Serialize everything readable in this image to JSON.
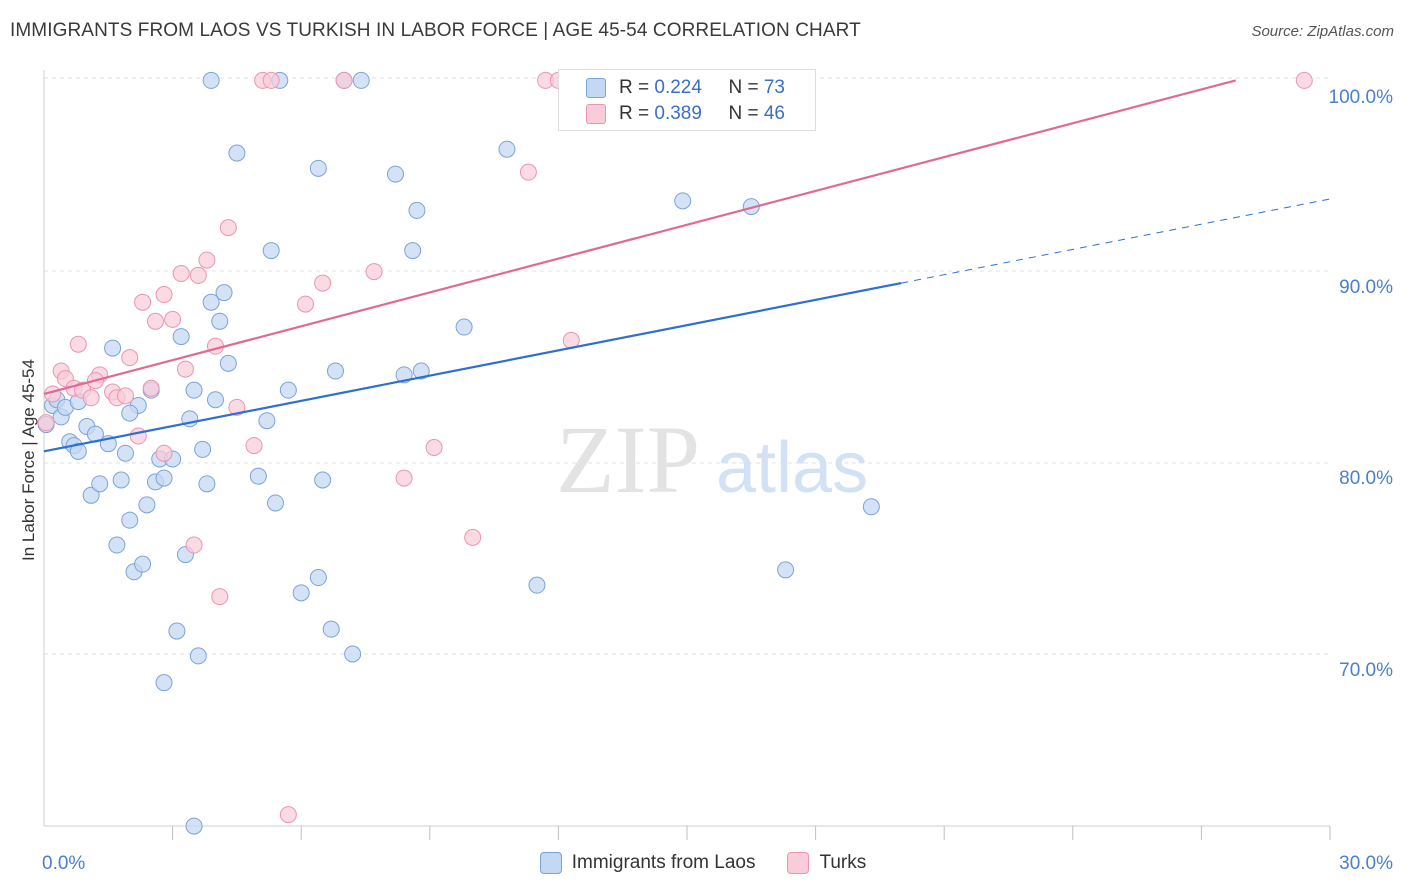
{
  "title": "IMMIGRANTS FROM LAOS VS TURKISH IN LABOR FORCE | AGE 45-54 CORRELATION CHART",
  "source": "Source: ZipAtlas.com",
  "watermark": {
    "zip": "ZIP",
    "atlas": "atlas"
  },
  "legend_top": {
    "rows": [
      {
        "r_label": "R = ",
        "r_value": "0.224",
        "n_label": "N = ",
        "n_value": "73"
      },
      {
        "r_label": "R = ",
        "r_value": "0.389",
        "n_label": "N = ",
        "n_value": "46"
      }
    ]
  },
  "chart_data": {
    "type": "scatter",
    "title": "IMMIGRANTS FROM LAOS VS TURKISH IN LABOR FORCE | AGE 45-54 CORRELATION CHART",
    "xlabel": "",
    "ylabel": "In Labor Force | Age 45-54",
    "xlim": [
      0,
      30
    ],
    "ylim": [
      60.5,
      101.5
    ],
    "x_tick_labels": [
      "0.0%",
      "30.0%"
    ],
    "y_ticks": [
      70,
      80,
      90,
      100
    ],
    "y_tick_labels": [
      "70.0%",
      "80.0%",
      "90.0%",
      "100.0%"
    ],
    "grid": true,
    "legend_position": "bottom",
    "colors": {
      "laos_fill": "#c5d8f3",
      "laos_stroke": "#7aa3da",
      "laos_line": "#2f6fd0",
      "turks_fill": "#f8ccd9",
      "turks_stroke": "#ec94b1",
      "turks_line": "#e06a94",
      "tick_label": "#4a7fd0"
    },
    "series": [
      {
        "name": "Immigrants from Laos",
        "r": 0.224,
        "n": 73,
        "trend": {
          "x0": 0,
          "y0": 80.6,
          "x1": 20,
          "y1": 89.4,
          "dash_to_x": 30,
          "dash_to_y": 93.8
        },
        "points": [
          [
            0.05,
            82.0
          ],
          [
            0.2,
            83.0
          ],
          [
            0.3,
            83.3
          ],
          [
            0.4,
            82.4
          ],
          [
            0.5,
            82.9
          ],
          [
            0.6,
            81.1
          ],
          [
            0.7,
            80.9
          ],
          [
            0.8,
            80.6
          ],
          [
            1.0,
            81.9
          ],
          [
            1.1,
            78.3
          ],
          [
            1.2,
            81.5
          ],
          [
            1.3,
            78.9
          ],
          [
            1.5,
            81.0
          ],
          [
            1.6,
            86.0
          ],
          [
            1.7,
            75.7
          ],
          [
            1.8,
            79.1
          ],
          [
            1.9,
            80.5
          ],
          [
            2.0,
            77.0
          ],
          [
            2.1,
            74.3
          ],
          [
            2.2,
            83.0
          ],
          [
            2.3,
            74.7
          ],
          [
            2.4,
            77.8
          ],
          [
            2.5,
            83.8
          ],
          [
            2.6,
            79.0
          ],
          [
            2.7,
            80.2
          ],
          [
            2.8,
            79.2
          ],
          [
            3.0,
            80.2
          ],
          [
            3.1,
            71.2
          ],
          [
            3.2,
            86.6
          ],
          [
            3.3,
            75.2
          ],
          [
            3.4,
            82.3
          ],
          [
            3.5,
            83.8
          ],
          [
            3.6,
            69.9
          ],
          [
            3.7,
            80.7
          ],
          [
            3.8,
            78.9
          ],
          [
            3.9,
            88.4
          ],
          [
            4.0,
            83.3
          ],
          [
            4.1,
            87.4
          ],
          [
            4.2,
            88.9
          ],
          [
            4.3,
            85.2
          ],
          [
            4.5,
            96.2
          ],
          [
            5.0,
            79.3
          ],
          [
            5.2,
            82.2
          ],
          [
            5.3,
            91.1
          ],
          [
            5.4,
            77.9
          ],
          [
            5.5,
            100.0
          ],
          [
            5.7,
            83.8
          ],
          [
            6.0,
            73.2
          ],
          [
            6.4,
            74.0
          ],
          [
            6.5,
            79.1
          ],
          [
            6.4,
            95.4
          ],
          [
            6.7,
            71.3
          ],
          [
            6.8,
            84.8
          ],
          [
            7.0,
            100.0
          ],
          [
            7.2,
            70.0
          ],
          [
            8.2,
            95.1
          ],
          [
            8.4,
            84.6
          ],
          [
            8.6,
            91.1
          ],
          [
            8.7,
            93.2
          ],
          [
            8.8,
            84.8
          ],
          [
            9.8,
            87.1
          ],
          [
            10.8,
            96.4
          ],
          [
            11.5,
            73.6
          ],
          [
            14.9,
            93.7
          ],
          [
            16.5,
            93.4
          ],
          [
            17.3,
            74.4
          ],
          [
            19.3,
            77.7
          ],
          [
            3.9,
            100.0
          ],
          [
            7.4,
            100.0
          ],
          [
            2.8,
            68.5
          ],
          [
            3.5,
            61.0
          ],
          [
            0.8,
            83.2
          ],
          [
            2.0,
            82.6
          ]
        ]
      },
      {
        "name": "Turks",
        "r": 0.389,
        "n": 46,
        "trend": {
          "x0": 0,
          "y0": 83.6,
          "x1": 27.8,
          "y1": 100.0
        },
        "points": [
          [
            0.05,
            82.1
          ],
          [
            0.2,
            83.6
          ],
          [
            0.4,
            84.8
          ],
          [
            0.5,
            84.4
          ],
          [
            0.7,
            83.9
          ],
          [
            0.8,
            86.2
          ],
          [
            0.9,
            83.8
          ],
          [
            1.1,
            83.4
          ],
          [
            1.3,
            84.6
          ],
          [
            1.6,
            83.7
          ],
          [
            1.7,
            83.4
          ],
          [
            1.9,
            83.5
          ],
          [
            2.0,
            85.5
          ],
          [
            2.2,
            81.4
          ],
          [
            2.3,
            88.4
          ],
          [
            2.5,
            83.9
          ],
          [
            2.6,
            87.4
          ],
          [
            2.8,
            88.8
          ],
          [
            3.0,
            87.5
          ],
          [
            3.2,
            89.9
          ],
          [
            3.3,
            84.9
          ],
          [
            3.5,
            75.7
          ],
          [
            3.6,
            89.8
          ],
          [
            3.8,
            90.6
          ],
          [
            4.0,
            86.1
          ],
          [
            4.1,
            73.0
          ],
          [
            4.3,
            92.3
          ],
          [
            4.5,
            82.9
          ],
          [
            4.9,
            80.9
          ],
          [
            5.1,
            100.0
          ],
          [
            5.3,
            100.0
          ],
          [
            5.7,
            61.6
          ],
          [
            6.1,
            88.3
          ],
          [
            6.5,
            89.4
          ],
          [
            7.0,
            100.0
          ],
          [
            7.7,
            90.0
          ],
          [
            8.4,
            79.2
          ],
          [
            9.1,
            80.8
          ],
          [
            10.0,
            76.1
          ],
          [
            11.3,
            95.2
          ],
          [
            11.7,
            100.0
          ],
          [
            12.0,
            100.0
          ],
          [
            12.3,
            86.4
          ],
          [
            29.4,
            100.0
          ],
          [
            2.8,
            80.5
          ],
          [
            1.2,
            84.3
          ]
        ]
      }
    ]
  }
}
